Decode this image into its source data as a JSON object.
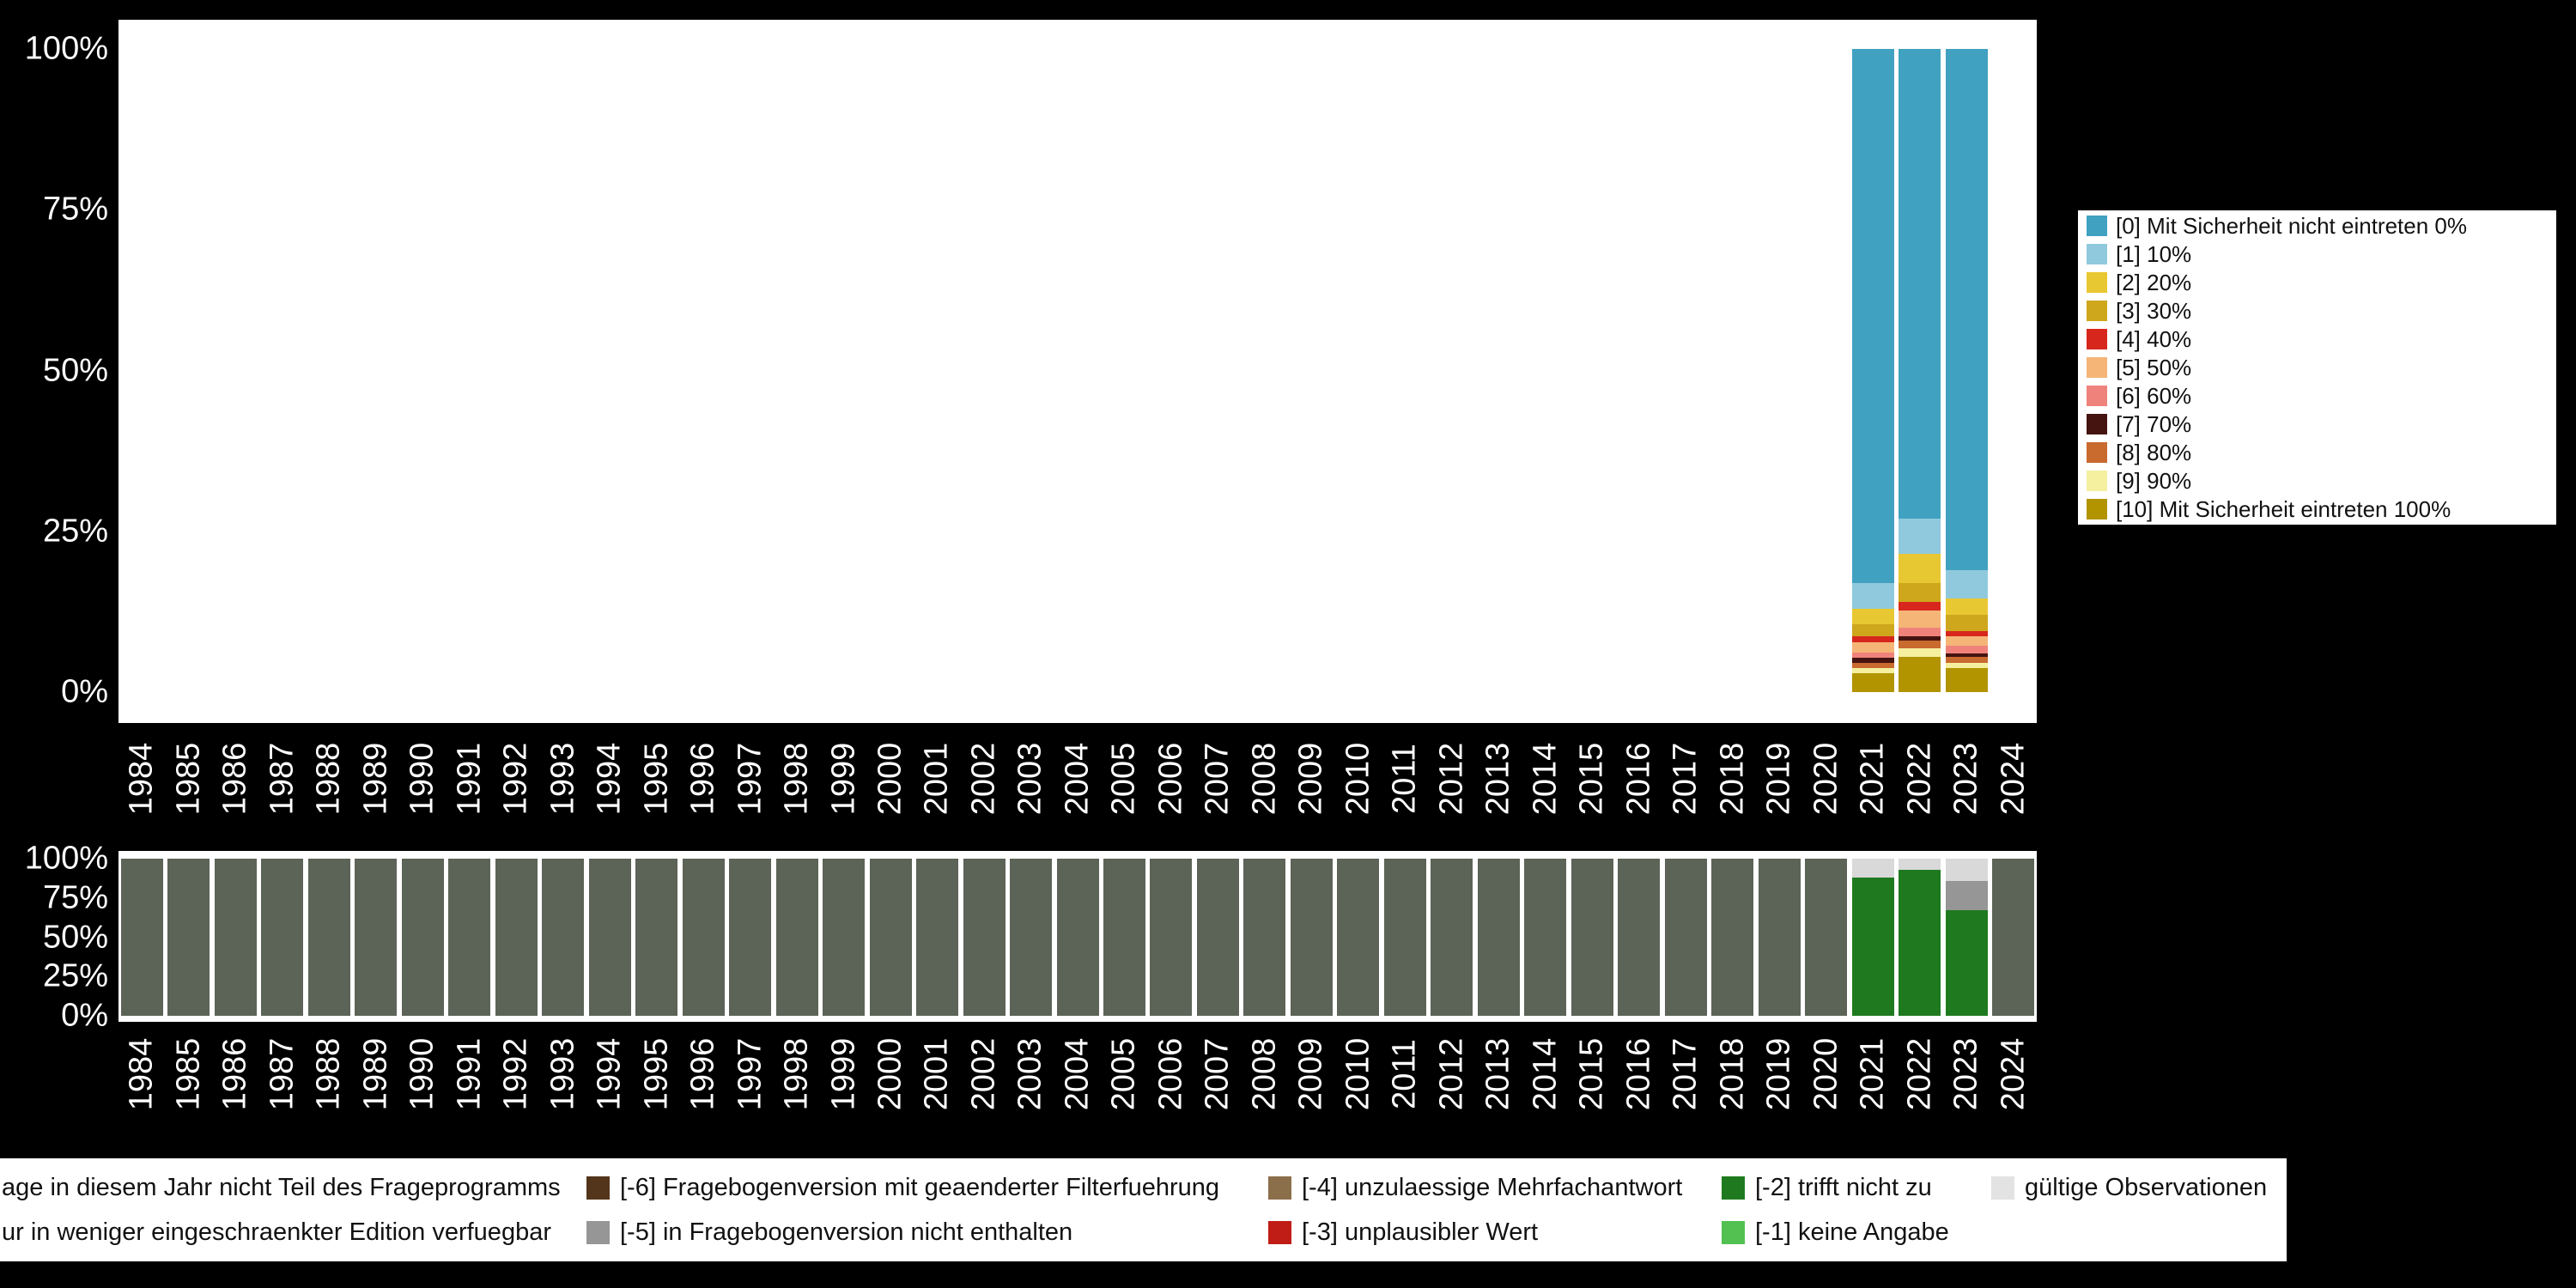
{
  "screen": {
    "background": "#000000"
  },
  "years": [
    "1984",
    "1985",
    "1986",
    "1987",
    "1988",
    "1989",
    "1990",
    "1991",
    "1992",
    "1993",
    "1994",
    "1995",
    "1996",
    "1997",
    "1998",
    "1999",
    "2000",
    "2001",
    "2002",
    "2003",
    "2004",
    "2005",
    "2006",
    "2007",
    "2008",
    "2009",
    "2010",
    "2011",
    "2012",
    "2013",
    "2014",
    "2015",
    "2016",
    "2017",
    "2018",
    "2019",
    "2020",
    "2021",
    "2022",
    "2023",
    "2024"
  ],
  "y_ticks": [
    {
      "label": "0%",
      "value": 0
    },
    {
      "label": "25%",
      "value": 25
    },
    {
      "label": "50%",
      "value": 50
    },
    {
      "label": "75%",
      "value": 75
    },
    {
      "label": "100%",
      "value": 100
    }
  ],
  "chart_data": [
    {
      "type": "bar",
      "stacked": true,
      "title": "",
      "xlabel": "",
      "ylabel": "",
      "ylim": [
        0,
        100
      ],
      "grid": false,
      "legend_position": "right",
      "categories_from": "years",
      "series": [
        {
          "name": "[0] Mit Sicherheit nicht eintreten 0%",
          "color": "#41A1C1",
          "values": {
            "2021": 83,
            "2022": 73,
            "2023": 81
          }
        },
        {
          "name": "[1] 10%",
          "color": "#90C9DD",
          "values": {
            "2021": 4,
            "2022": 5.5,
            "2023": 4.5
          }
        },
        {
          "name": "[2] 20%",
          "color": "#E8C832",
          "values": {
            "2021": 2.5,
            "2022": 4.5,
            "2023": 2.5
          }
        },
        {
          "name": "[3] 30%",
          "color": "#CEA71C",
          "values": {
            "2021": 1.8,
            "2022": 3,
            "2023": 2.5
          }
        },
        {
          "name": "[4] 40%",
          "color": "#D7271D",
          "values": {
            "2021": 0.9,
            "2022": 1.3,
            "2023": 0.8
          }
        },
        {
          "name": "[5] 50%",
          "color": "#F5B577",
          "values": {
            "2021": 1.7,
            "2022": 2.7,
            "2023": 1.5
          }
        },
        {
          "name": "[6] 60%",
          "color": "#EF837B",
          "values": {
            "2021": 0.8,
            "2022": 1.3,
            "2023": 1.2
          }
        },
        {
          "name": "[7] 70%",
          "color": "#451410",
          "values": {
            "2021": 0.8,
            "2022": 0.7,
            "2023": 0.5
          }
        },
        {
          "name": "[8] 80%",
          "color": "#C96A2F",
          "values": {
            "2021": 0.8,
            "2022": 1.2,
            "2023": 1
          }
        },
        {
          "name": "[9] 90%",
          "color": "#F5F0A0",
          "values": {
            "2021": 0.7,
            "2022": 1.3,
            "2023": 0.8
          }
        },
        {
          "name": "[10] Mit Sicherheit eintreten 100%",
          "color": "#B29400",
          "values": {
            "2021": 3,
            "2022": 5.5,
            "2023": 3.7
          }
        }
      ]
    },
    {
      "type": "bar",
      "stacked": true,
      "title": "",
      "xlabel": "",
      "ylabel": "",
      "ylim": [
        0,
        100
      ],
      "grid": false,
      "categories_from": "years",
      "default_bar": [
        {
          "label": "age in diesem Jahr nicht Teil des Frageprogramms",
          "color": "#5C6357",
          "value": 100
        }
      ],
      "special_bars": {
        "2021": [
          {
            "label": "[-2] trifft nicht zu",
            "color": "#1F7A1F",
            "value": 88
          },
          {
            "label": "gültige Observationen",
            "color": "#D9D9D9",
            "value": 12
          }
        ],
        "2022": [
          {
            "label": "[-2] trifft nicht zu",
            "color": "#1F7A1F",
            "value": 93
          },
          {
            "label": "gültige Observationen",
            "color": "#D9D9D9",
            "value": 7
          }
        ],
        "2023": [
          {
            "label": "[-2] trifft nicht zu",
            "color": "#1F7A1F",
            "value": 67
          },
          {
            "label": "[-5] in Fragebogenversion nicht enthalten",
            "color": "#969696",
            "value": 19
          },
          {
            "label": "gültige Observationen",
            "color": "#D9D9D9",
            "value": 14
          }
        ]
      }
    }
  ],
  "legend_bottom": {
    "rows": [
      [
        {
          "label": "age in diesem Jahr nicht Teil des Frageprogramms",
          "color": null
        },
        {
          "label": "[-6] Fragebogenversion mit geaenderter Filterfuehrung",
          "color": "#53351B"
        },
        {
          "label": "[-4] unzulaessige Mehrfachantwort",
          "color": "#8B6F4B"
        },
        {
          "label": "[-2] trifft nicht zu",
          "color": "#1F7A1F"
        },
        {
          "label": "gültige Observationen",
          "color": "#E3E3E3"
        }
      ],
      [
        {
          "label": "ur in weniger eingeschraenkter Edition verfuegbar",
          "color": null
        },
        {
          "label": "[-5] in Fragebogenversion nicht enthalten",
          "color": "#969696"
        },
        {
          "label": "[-3] unplausibler Wert",
          "color": "#C01D17"
        },
        {
          "label": "[-1] keine Angabe",
          "color": "#52C152"
        }
      ]
    ]
  }
}
